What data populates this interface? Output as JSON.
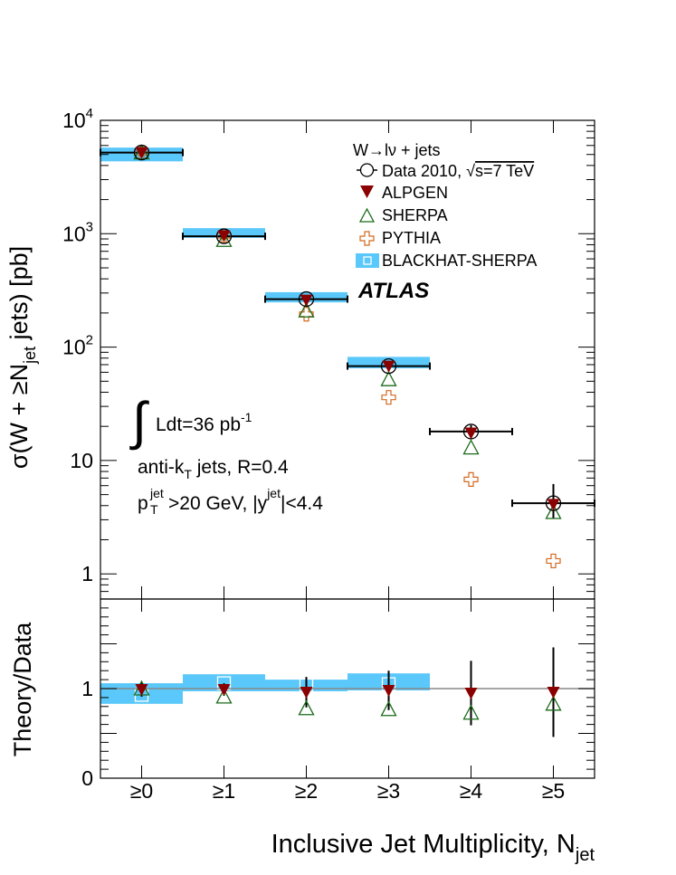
{
  "chart_data": [
    {
      "type": "scatter",
      "panel": "main",
      "yscale": "log",
      "ylim": [
        0.6,
        10000
      ],
      "ylabel_parts": {
        "pre": "σ(W + ≥N",
        "sub": "jet",
        "post": " jets) [pb]"
      },
      "ytick_labels": [
        {
          "value": 10000,
          "base": "10",
          "exp": "4"
        },
        {
          "value": 1000,
          "base": "10",
          "exp": "3"
        },
        {
          "value": 100,
          "base": "10",
          "exp": "2"
        },
        {
          "value": 10,
          "base": "10",
          "exp": ""
        },
        {
          "value": 1,
          "base": "1",
          "exp": ""
        }
      ],
      "categories": [
        "≥0",
        "≥1",
        "≥2",
        "≥3",
        "≥4",
        "≥5"
      ],
      "series": [
        {
          "name": "Data 2010,",
          "marker": "open-circle",
          "values": [
            5200,
            950,
            265,
            68,
            18,
            4.2
          ],
          "err_low": [
            400,
            60,
            20,
            7,
            2.5,
            1.1
          ],
          "err_high": [
            400,
            60,
            20,
            7,
            2.5,
            2.0
          ]
        },
        {
          "name": "ALPGEN",
          "marker": "filled-down-triangle",
          "color": "#8b0000",
          "values": [
            5200,
            960,
            260,
            68,
            17.5,
            4.1
          ]
        },
        {
          "name": "SHERPA",
          "marker": "open-triangle",
          "color": "#1a6b1a",
          "values": [
            5200,
            880,
            210,
            52,
            13,
            3.5
          ]
        },
        {
          "name": "PYTHIA",
          "marker": "open-cross",
          "color": "#d2691e",
          "values": [
            5200,
            960,
            195,
            36,
            6.8,
            1.3
          ]
        },
        {
          "name": "BLACKHAT-SHERPA",
          "marker": "band",
          "color": "#5ac8fa",
          "low": [
            4350,
            920,
            248,
            65,
            null,
            null
          ],
          "high": [
            5750,
            1120,
            305,
            82,
            null,
            null
          ]
        }
      ],
      "legend": {
        "header_parts": {
          "w": "W",
          "arrow": "→",
          "lnu": "lν",
          "rest": " + jets"
        },
        "data_sqrt_label": "s=7 TeV"
      },
      "annotations": {
        "atlas": "ATLAS",
        "lumi": {
          "pre": "Ldt=36 pb",
          "sup": "-1"
        },
        "jets": {
          "pre": "anti-k",
          "sub": "T",
          "post": " jets, R=0.4"
        },
        "cuts": {
          "p": "p",
          "p_sup": "jet",
          "p_sub": "T",
          "mid": ">20 GeV, |y",
          "y_sup": "jet",
          "end": "|<4.4"
        }
      }
    },
    {
      "type": "scatter",
      "panel": "ratio",
      "ylim": [
        0,
        2
      ],
      "ylabel": "Theory/Data",
      "ytick_labels": [
        "0",
        "1"
      ],
      "reference_line": 1,
      "categories": [
        "≥0",
        "≥1",
        "≥2",
        "≥3",
        "≥4",
        "≥5"
      ],
      "data_err": [
        0.08,
        0.07,
        0.17,
        0.22,
        0.36,
        0.5
      ],
      "series": [
        {
          "name": "ALPGEN",
          "values": [
            0.99,
            0.99,
            0.96,
            0.98,
            0.95,
            0.96
          ]
        },
        {
          "name": "SHERPA",
          "values": [
            1.0,
            0.91,
            0.78,
            0.77,
            0.73,
            0.83
          ]
        },
        {
          "name": "BLACKHAT-SHERPA",
          "center": [
            0.93,
            1.06,
            1.04,
            1.05,
            null,
            null
          ],
          "low": [
            0.83,
            0.97,
            0.97,
            0.98,
            null,
            null
          ],
          "high": [
            1.06,
            1.16,
            1.1,
            1.17,
            null,
            null
          ]
        }
      ]
    }
  ],
  "xlabel": {
    "pre": "Inclusive Jet Multiplicity, N",
    "sub": "jet"
  }
}
